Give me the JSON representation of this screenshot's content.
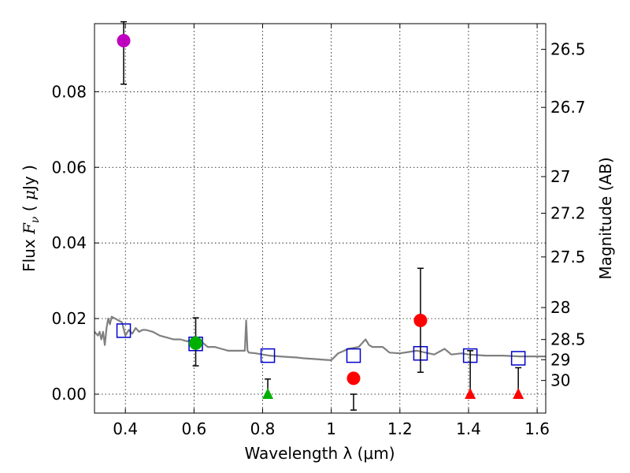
{
  "chart_data": {
    "type": "scatter",
    "xlabel": "Wavelength  λ (μm)",
    "ylabel": "Flux  F_ν  ( μJy )",
    "ylabel_parts": {
      "pre": "Flux  ",
      "F": "F",
      "nu": "ν",
      "mid": "  ( ",
      "mu": "μ",
      "post": "Jy )"
    },
    "ylabel_right": "Magnitude (AB)",
    "xlim": [
      0.31,
      1.625
    ],
    "ylim": [
      -0.005,
      0.098
    ],
    "grid": true,
    "x_ticks": [
      {
        "value": 0.4,
        "label": "0.4"
      },
      {
        "value": 0.6,
        "label": "0.6"
      },
      {
        "value": 0.8,
        "label": "0.8"
      },
      {
        "value": 1.0,
        "label": "1"
      },
      {
        "value": 1.2,
        "label": "1.2"
      },
      {
        "value": 1.4,
        "label": "1.4"
      },
      {
        "value": 1.6,
        "label": "1.6"
      }
    ],
    "y_ticks": [
      {
        "value": 0.0,
        "label": "0.00"
      },
      {
        "value": 0.02,
        "label": "0.02"
      },
      {
        "value": 0.04,
        "label": "0.04"
      },
      {
        "value": 0.06,
        "label": "0.06"
      },
      {
        "value": 0.08,
        "label": "0.08"
      }
    ],
    "mag_ticks": [
      {
        "value": 26.5,
        "label": "26.5"
      },
      {
        "value": 26.7,
        "label": "26.7"
      },
      {
        "value": 27.0,
        "label": "27"
      },
      {
        "value": 27.2,
        "label": "27.2"
      },
      {
        "value": 27.5,
        "label": "27.5"
      },
      {
        "value": 28.0,
        "label": "28"
      },
      {
        "value": 28.5,
        "label": "28.5"
      },
      {
        "value": 29.0,
        "label": "29"
      },
      {
        "value": 30.0,
        "label": "30"
      }
    ],
    "series": [
      {
        "name": "SED model",
        "kind": "line",
        "color": "#808080",
        "x": [
          0.31,
          0.315,
          0.32,
          0.325,
          0.33,
          0.335,
          0.34,
          0.345,
          0.35,
          0.355,
          0.36,
          0.37,
          0.38,
          0.39,
          0.4,
          0.41,
          0.42,
          0.43,
          0.44,
          0.45,
          0.46,
          0.48,
          0.5,
          0.52,
          0.54,
          0.56,
          0.58,
          0.6,
          0.62,
          0.64,
          0.66,
          0.68,
          0.7,
          0.72,
          0.74,
          0.748,
          0.752,
          0.756,
          0.76,
          0.78,
          0.8,
          0.82,
          0.85,
          0.88,
          0.9,
          0.92,
          0.95,
          0.98,
          1.0,
          1.02,
          1.05,
          1.08,
          1.1,
          1.11,
          1.12,
          1.15,
          1.17,
          1.2,
          1.25,
          1.3,
          1.33,
          1.35,
          1.38,
          1.4,
          1.45,
          1.5,
          1.55,
          1.6,
          1.625
        ],
        "y": [
          0.0165,
          0.016,
          0.0155,
          0.0165,
          0.0145,
          0.0165,
          0.013,
          0.0175,
          0.02,
          0.0185,
          0.0205,
          0.02,
          0.0195,
          0.019,
          0.0155,
          0.017,
          0.016,
          0.0175,
          0.0165,
          0.017,
          0.017,
          0.0165,
          0.0155,
          0.015,
          0.0145,
          0.0145,
          0.014,
          0.0145,
          0.014,
          0.0125,
          0.0125,
          0.012,
          0.0115,
          0.0115,
          0.0115,
          0.0115,
          0.0195,
          0.0115,
          0.011,
          0.0108,
          0.0105,
          0.0102,
          0.01,
          0.0098,
          0.0097,
          0.0095,
          0.0093,
          0.0091,
          0.009,
          0.0108,
          0.012,
          0.0125,
          0.0145,
          0.013,
          0.0125,
          0.0125,
          0.011,
          0.0108,
          0.0115,
          0.0105,
          0.012,
          0.0105,
          0.0108,
          0.0105,
          0.0102,
          0.0102,
          0.01,
          0.01,
          0.01
        ]
      },
      {
        "name": "Model fluxes",
        "kind": "open-square",
        "color": "#0000cc",
        "x": [
          0.395,
          0.605,
          0.815,
          1.065,
          1.26,
          1.405,
          1.545
        ],
        "y": [
          0.0168,
          0.0133,
          0.0102,
          0.0102,
          0.0108,
          0.0102,
          0.0095
        ]
      },
      {
        "name": "Observed (magenta)",
        "kind": "circle",
        "color": "#bf00bf",
        "x": [
          0.395
        ],
        "y": [
          0.0935
        ],
        "err": [
          [
            0.082,
            0.0985
          ]
        ]
      },
      {
        "name": "Observed (green)",
        "kind": "circle",
        "color": "#00b000",
        "x": [
          0.605
        ],
        "y": [
          0.0135
        ],
        "err": [
          [
            0.0075,
            0.0202
          ]
        ]
      },
      {
        "name": "Observed (red)",
        "kind": "circle",
        "color": "#ff0000",
        "x": [
          1.065,
          1.26
        ],
        "y": [
          0.0042,
          0.0195
        ],
        "err": [
          [
            -0.0042,
            0.0
          ],
          [
            0.0058,
            0.0333
          ]
        ]
      },
      {
        "name": "Upper limit (green)",
        "kind": "triangle",
        "color": "#00b000",
        "x": [
          0.815
        ],
        "y": [
          0.0
        ],
        "err": [
          [
            0.0,
            0.004
          ]
        ]
      },
      {
        "name": "Upper limits (red)",
        "kind": "triangle",
        "color": "#ff0000",
        "x": [
          1.405,
          1.545
        ],
        "y": [
          0.0,
          0.0
        ],
        "err": [
          [
            0.0,
            0.0115
          ],
          [
            0.0,
            0.007
          ]
        ]
      }
    ]
  }
}
